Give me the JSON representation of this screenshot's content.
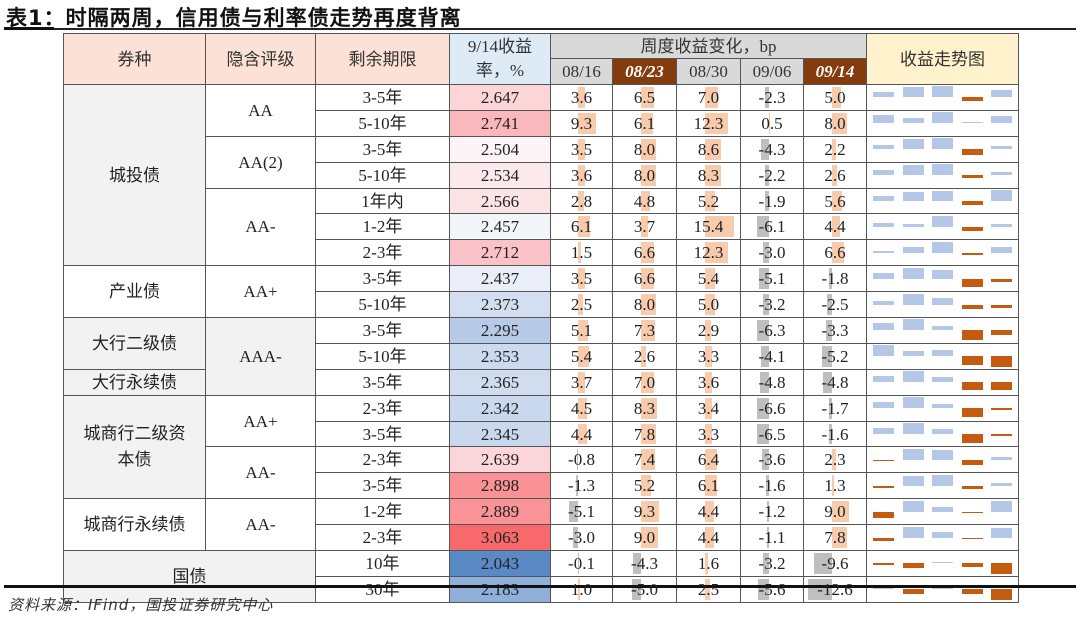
{
  "title": "表1：时隔两周，信用债与利率债走势再度背离",
  "source": "资料来源：IFind，国投证券研究中心",
  "header": {
    "bond_type": "券种",
    "rating": "隐含评级",
    "maturity": "剩余期限",
    "yield": "9/14收益率，%",
    "weekly_change": "周度收益变化，bp",
    "trend": "收益走势图",
    "weeks": [
      "08/16",
      "08/23",
      "08/30",
      "09/06",
      "09/14"
    ],
    "highlight_weeks": [
      "08/23",
      "09/14"
    ]
  },
  "colors": {
    "header_peach": "#fbe1d6",
    "header_blue": "#ddebf7",
    "header_gray": "#d9d9d9",
    "header_brown": "#843c0c",
    "header_yellow": "#fff2cc",
    "bar_positive": "#f8cbad",
    "bar_negative": "#bfbfbf",
    "trend_positive": "#b4c7e7",
    "trend_negative": "#c55a11"
  },
  "groups": [
    {
      "type": "城投债",
      "rowspan": 7,
      "shade": "gray",
      "ratings": [
        {
          "rating": "AA",
          "rowspan": 2
        },
        {
          "rating": "AA(2)",
          "rowspan": 2
        },
        {
          "rating": "AA-",
          "rowspan": 3
        }
      ]
    },
    {
      "type": "产业债",
      "rowspan": 2,
      "shade": "white",
      "ratings": [
        {
          "rating": "AA+",
          "rowspan": 2
        }
      ]
    },
    {
      "type": "大行二级债",
      "rowspan": 2,
      "shade": "gray",
      "ratings": []
    },
    {
      "type": "大行永续债",
      "rowspan": 1,
      "shade": "gray",
      "ratings": []
    },
    {
      "type": "城商行二级资本债",
      "rowspan": 4,
      "shade": "gray",
      "ratings": [
        {
          "rating": "AA+",
          "rowspan": 2
        },
        {
          "rating": "AA-",
          "rowspan": 2
        }
      ]
    },
    {
      "type": "城商行永续债",
      "rowspan": 2,
      "shade": "white",
      "ratings": [
        {
          "rating": "AA-",
          "rowspan": 2
        }
      ]
    },
    {
      "type": "国债",
      "rowspan": 2,
      "shade": "gray",
      "ratings": []
    }
  ],
  "rows": [
    {
      "maturity": "3-5年",
      "yield": "2.647",
      "yield_color": "#fcd5d9",
      "changes": [
        3.6,
        6.5,
        7.0,
        -2.3,
        5.0
      ]
    },
    {
      "maturity": "5-10年",
      "yield": "2.741",
      "yield_color": "#fab8bd",
      "changes": [
        9.3,
        6.1,
        12.3,
        0.5,
        8.0
      ]
    },
    {
      "maturity": "3-5年",
      "yield": "2.504",
      "yield_color": "#fcf4f6",
      "changes": [
        3.5,
        8.0,
        8.6,
        -4.3,
        2.2
      ]
    },
    {
      "maturity": "5-10年",
      "yield": "2.534",
      "yield_color": "#fce9ec",
      "changes": [
        3.6,
        8.0,
        8.3,
        -2.2,
        2.6
      ]
    },
    {
      "maturity": "1年内",
      "yield": "2.566",
      "yield_color": "#fce3e6",
      "changes": [
        2.8,
        4.8,
        5.2,
        -1.9,
        5.6
      ]
    },
    {
      "maturity": "1-2年",
      "yield": "2.457",
      "yield_color": "#f2f5fa",
      "changes": [
        6.1,
        3.7,
        15.4,
        -6.1,
        4.4
      ]
    },
    {
      "maturity": "2-3年",
      "yield": "2.712",
      "yield_color": "#fbc2c7",
      "changes": [
        1.5,
        6.6,
        12.3,
        -3.0,
        6.6
      ]
    },
    {
      "maturity": "3-5年",
      "yield": "2.437",
      "yield_color": "#e9eef8",
      "changes": [
        3.5,
        6.6,
        5.4,
        -5.1,
        -1.8
      ]
    },
    {
      "maturity": "5-10年",
      "yield": "2.373",
      "yield_color": "#d3dff0",
      "changes": [
        2.5,
        8.0,
        5.0,
        -3.2,
        -2.5
      ]
    },
    {
      "maturity": "3-5年",
      "yield": "2.295",
      "yield_color": "#b7cbe8",
      "changes": [
        5.1,
        7.3,
        2.9,
        -6.3,
        -3.3
      ]
    },
    {
      "maturity": "5-10年",
      "yield": "2.353",
      "yield_color": "#ccdaef",
      "changes": [
        5.4,
        2.6,
        3.3,
        -4.1,
        -5.2
      ]
    },
    {
      "maturity": "3-5年",
      "yield": "2.365",
      "yield_color": "#d0ddef",
      "changes": [
        3.7,
        7.0,
        3.6,
        -4.8,
        -4.8
      ]
    },
    {
      "maturity": "2-3年",
      "yield": "2.342",
      "yield_color": "#c9d8ee",
      "changes": [
        4.5,
        8.3,
        3.4,
        -6.6,
        -1.7
      ]
    },
    {
      "maturity": "3-5年",
      "yield": "2.345",
      "yield_color": "#cad8ee",
      "changes": [
        4.4,
        7.8,
        3.3,
        -6.5,
        -1.6
      ]
    },
    {
      "maturity": "2-3年",
      "yield": "2.639",
      "yield_color": "#fcd6da",
      "changes": [
        -0.8,
        7.4,
        6.4,
        -3.6,
        2.3
      ]
    },
    {
      "maturity": "3-5年",
      "yield": "2.898",
      "yield_color": "#f99195",
      "changes": [
        -1.3,
        5.2,
        6.1,
        -1.6,
        1.3
      ]
    },
    {
      "maturity": "1-2年",
      "yield": "2.889",
      "yield_color": "#f99397",
      "changes": [
        -5.1,
        9.3,
        4.4,
        -1.2,
        9.0
      ]
    },
    {
      "maturity": "2-3年",
      "yield": "3.063",
      "yield_color": "#f8696b",
      "changes": [
        -3.0,
        9.0,
        4.4,
        -1.1,
        7.8
      ]
    },
    {
      "maturity": "10年",
      "yield": "2.043",
      "yield_color": "#5a8ac6",
      "changes": [
        -0.1,
        -4.3,
        1.6,
        -3.2,
        -9.6
      ]
    },
    {
      "maturity": "30年",
      "yield": "2.183",
      "yield_color": "#8eb0db",
      "changes": [
        1.0,
        -5.0,
        2.5,
        -5.6,
        -12.6
      ]
    }
  ]
}
